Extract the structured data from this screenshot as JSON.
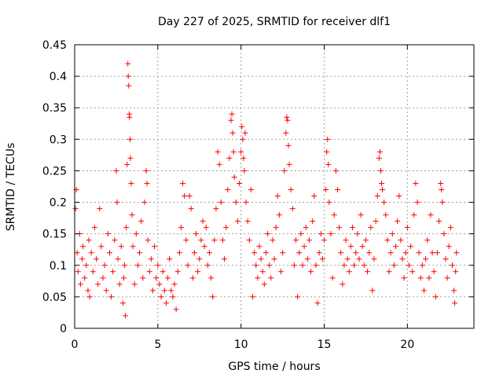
{
  "chart_data": {
    "type": "scatter",
    "title": "Day 227 of 2025, SRMTID for receiver dlf1",
    "xlabel": "GPS time / hours",
    "ylabel": "SRMTID / TECUs",
    "xlim": [
      0,
      24
    ],
    "ylim": [
      0,
      0.45
    ],
    "xticks": [
      0,
      5,
      10,
      15,
      20
    ],
    "xtick_labels": [
      "0",
      "5",
      "10",
      "15",
      "20"
    ],
    "yticks": [
      0,
      0.05,
      0.1,
      0.15,
      0.2,
      0.25,
      0.3,
      0.35,
      0.4,
      0.45
    ],
    "ytick_labels": [
      "0",
      "0.05",
      "0.1",
      "0.15",
      "0.2",
      "0.25",
      "0.3",
      "0.35",
      "0.4",
      "0.45"
    ],
    "grid": true,
    "marker": "+",
    "color": "#ff0000",
    "series": [
      {
        "name": "SRMTID",
        "points": [
          [
            0.05,
            0.19
          ],
          [
            0.1,
            0.22
          ],
          [
            0.15,
            0.12
          ],
          [
            0.2,
            0.09
          ],
          [
            0.3,
            0.15
          ],
          [
            0.35,
            0.07
          ],
          [
            0.45,
            0.11
          ],
          [
            0.5,
            0.13
          ],
          [
            0.6,
            0.08
          ],
          [
            0.7,
            0.1
          ],
          [
            0.8,
            0.06
          ],
          [
            0.85,
            0.14
          ],
          [
            0.9,
            0.05
          ],
          [
            1.0,
            0.12
          ],
          [
            1.1,
            0.09
          ],
          [
            1.2,
            0.16
          ],
          [
            1.3,
            0.11
          ],
          [
            1.4,
            0.07
          ],
          [
            1.5,
            0.19
          ],
          [
            1.6,
            0.13
          ],
          [
            1.7,
            0.08
          ],
          [
            1.8,
            0.1
          ],
          [
            1.9,
            0.06
          ],
          [
            2.0,
            0.15
          ],
          [
            2.1,
            0.12
          ],
          [
            2.2,
            0.05
          ],
          [
            2.3,
            0.09
          ],
          [
            2.4,
            0.14
          ],
          [
            2.5,
            0.25
          ],
          [
            2.55,
            0.2
          ],
          [
            2.6,
            0.11
          ],
          [
            2.7,
            0.07
          ],
          [
            2.8,
            0.13
          ],
          [
            2.9,
            0.04
          ],
          [
            2.95,
            0.08
          ],
          [
            3.0,
            0.1
          ],
          [
            3.05,
            0.02
          ],
          [
            3.1,
            0.16
          ],
          [
            3.15,
            0.26
          ],
          [
            3.2,
            0.42
          ],
          [
            3.22,
            0.4
          ],
          [
            3.25,
            0.385
          ],
          [
            3.28,
            0.34
          ],
          [
            3.3,
            0.335
          ],
          [
            3.33,
            0.3
          ],
          [
            3.35,
            0.27
          ],
          [
            3.4,
            0.23
          ],
          [
            3.45,
            0.18
          ],
          [
            3.5,
            0.13
          ],
          [
            3.6,
            0.07
          ],
          [
            3.7,
            0.15
          ],
          [
            3.8,
            0.1
          ],
          [
            3.9,
            0.12
          ],
          [
            4.0,
            0.17
          ],
          [
            4.1,
            0.08
          ],
          [
            4.2,
            0.2
          ],
          [
            4.3,
            0.25
          ],
          [
            4.35,
            0.23
          ],
          [
            4.4,
            0.14
          ],
          [
            4.5,
            0.09
          ],
          [
            4.6,
            0.11
          ],
          [
            4.7,
            0.06
          ],
          [
            4.8,
            0.13
          ],
          [
            4.9,
            0.08
          ],
          [
            5.0,
            0.1
          ],
          [
            5.1,
            0.07
          ],
          [
            5.2,
            0.05
          ],
          [
            5.3,
            0.09
          ],
          [
            5.4,
            0.06
          ],
          [
            5.5,
            0.04
          ],
          [
            5.6,
            0.08
          ],
          [
            5.7,
            0.11
          ],
          [
            5.8,
            0.06
          ],
          [
            5.9,
            0.05
          ],
          [
            6.0,
            0.07
          ],
          [
            6.1,
            0.03
          ],
          [
            6.2,
            0.09
          ],
          [
            6.3,
            0.12
          ],
          [
            6.4,
            0.16
          ],
          [
            6.5,
            0.23
          ],
          [
            6.6,
            0.21
          ],
          [
            6.7,
            0.14
          ],
          [
            6.8,
            0.1
          ],
          [
            6.9,
            0.21
          ],
          [
            7.0,
            0.19
          ],
          [
            7.1,
            0.08
          ],
          [
            7.2,
            0.12
          ],
          [
            7.3,
            0.15
          ],
          [
            7.4,
            0.09
          ],
          [
            7.5,
            0.11
          ],
          [
            7.6,
            0.14
          ],
          [
            7.7,
            0.17
          ],
          [
            7.8,
            0.13
          ],
          [
            7.9,
            0.16
          ],
          [
            8.0,
            0.1
          ],
          [
            8.1,
            0.12
          ],
          [
            8.2,
            0.08
          ],
          [
            8.3,
            0.05
          ],
          [
            8.4,
            0.14
          ],
          [
            8.5,
            0.19
          ],
          [
            8.6,
            0.28
          ],
          [
            8.7,
            0.26
          ],
          [
            8.8,
            0.2
          ],
          [
            8.9,
            0.14
          ],
          [
            9.0,
            0.11
          ],
          [
            9.1,
            0.16
          ],
          [
            9.2,
            0.22
          ],
          [
            9.3,
            0.27
          ],
          [
            9.4,
            0.33
          ],
          [
            9.45,
            0.34
          ],
          [
            9.5,
            0.31
          ],
          [
            9.55,
            0.28
          ],
          [
            9.6,
            0.24
          ],
          [
            9.7,
            0.2
          ],
          [
            9.8,
            0.17
          ],
          [
            9.9,
            0.23
          ],
          [
            10.0,
            0.28
          ],
          [
            10.05,
            0.32
          ],
          [
            10.1,
            0.3
          ],
          [
            10.15,
            0.27
          ],
          [
            10.2,
            0.25
          ],
          [
            10.25,
            0.31
          ],
          [
            10.3,
            0.2
          ],
          [
            10.4,
            0.17
          ],
          [
            10.5,
            0.14
          ],
          [
            10.6,
            0.22
          ],
          [
            10.7,
            0.05
          ],
          [
            10.8,
            0.12
          ],
          [
            10.9,
            0.1
          ],
          [
            11.0,
            0.08
          ],
          [
            11.1,
            0.13
          ],
          [
            11.2,
            0.11
          ],
          [
            11.3,
            0.09
          ],
          [
            11.4,
            0.07
          ],
          [
            11.5,
            0.12
          ],
          [
            11.6,
            0.15
          ],
          [
            11.7,
            0.1
          ],
          [
            11.8,
            0.08
          ],
          [
            11.9,
            0.14
          ],
          [
            12.0,
            0.11
          ],
          [
            12.1,
            0.16
          ],
          [
            12.2,
            0.21
          ],
          [
            12.3,
            0.18
          ],
          [
            12.4,
            0.09
          ],
          [
            12.5,
            0.12
          ],
          [
            12.6,
            0.25
          ],
          [
            12.7,
            0.31
          ],
          [
            12.75,
            0.335
          ],
          [
            12.8,
            0.33
          ],
          [
            12.85,
            0.29
          ],
          [
            12.9,
            0.26
          ],
          [
            13.0,
            0.22
          ],
          [
            13.1,
            0.19
          ],
          [
            13.2,
            0.1
          ],
          [
            13.3,
            0.14
          ],
          [
            13.4,
            0.05
          ],
          [
            13.5,
            0.12
          ],
          [
            13.6,
            0.15
          ],
          [
            13.7,
            0.1
          ],
          [
            13.8,
            0.13
          ],
          [
            13.9,
            0.16
          ],
          [
            14.0,
            0.11
          ],
          [
            14.1,
            0.14
          ],
          [
            14.2,
            0.09
          ],
          [
            14.3,
            0.17
          ],
          [
            14.4,
            0.21
          ],
          [
            14.5,
            0.1
          ],
          [
            14.6,
            0.04
          ],
          [
            14.7,
            0.12
          ],
          [
            14.8,
            0.15
          ],
          [
            14.9,
            0.11
          ],
          [
            15.0,
            0.14
          ],
          [
            15.1,
            0.22
          ],
          [
            15.15,
            0.28
          ],
          [
            15.2,
            0.3
          ],
          [
            15.25,
            0.26
          ],
          [
            15.3,
            0.2
          ],
          [
            15.4,
            0.15
          ],
          [
            15.5,
            0.08
          ],
          [
            15.6,
            0.18
          ],
          [
            15.7,
            0.25
          ],
          [
            15.8,
            0.22
          ],
          [
            15.9,
            0.16
          ],
          [
            16.0,
            0.12
          ],
          [
            16.1,
            0.07
          ],
          [
            16.2,
            0.1
          ],
          [
            16.3,
            0.14
          ],
          [
            16.4,
            0.11
          ],
          [
            16.5,
            0.09
          ],
          [
            16.6,
            0.13
          ],
          [
            16.7,
            0.16
          ],
          [
            16.8,
            0.1
          ],
          [
            16.9,
            0.12
          ],
          [
            17.0,
            0.15
          ],
          [
            17.1,
            0.11
          ],
          [
            17.2,
            0.18
          ],
          [
            17.3,
            0.13
          ],
          [
            17.4,
            0.1
          ],
          [
            17.5,
            0.14
          ],
          [
            17.6,
            0.09
          ],
          [
            17.7,
            0.12
          ],
          [
            17.8,
            0.16
          ],
          [
            17.9,
            0.06
          ],
          [
            18.0,
            0.11
          ],
          [
            18.1,
            0.17
          ],
          [
            18.2,
            0.21
          ],
          [
            18.3,
            0.27
          ],
          [
            18.35,
            0.28
          ],
          [
            18.4,
            0.25
          ],
          [
            18.45,
            0.23
          ],
          [
            18.5,
            0.22
          ],
          [
            18.6,
            0.2
          ],
          [
            18.7,
            0.18
          ],
          [
            18.8,
            0.14
          ],
          [
            18.9,
            0.09
          ],
          [
            19.0,
            0.12
          ],
          [
            19.1,
            0.15
          ],
          [
            19.2,
            0.1
          ],
          [
            19.3,
            0.13
          ],
          [
            19.4,
            0.17
          ],
          [
            19.5,
            0.21
          ],
          [
            19.6,
            0.14
          ],
          [
            19.7,
            0.11
          ],
          [
            19.8,
            0.08
          ],
          [
            19.9,
            0.12
          ],
          [
            20.0,
            0.16
          ],
          [
            20.1,
            0.1
          ],
          [
            20.2,
            0.13
          ],
          [
            20.3,
            0.09
          ],
          [
            20.4,
            0.18
          ],
          [
            20.5,
            0.23
          ],
          [
            20.6,
            0.2
          ],
          [
            20.7,
            0.12
          ],
          [
            20.8,
            0.08
          ],
          [
            20.9,
            0.1
          ],
          [
            21.0,
            0.06
          ],
          [
            21.1,
            0.11
          ],
          [
            21.2,
            0.14
          ],
          [
            21.3,
            0.08
          ],
          [
            21.4,
            0.18
          ],
          [
            21.5,
            0.12
          ],
          [
            21.6,
            0.09
          ],
          [
            21.7,
            0.05
          ],
          [
            21.8,
            0.12
          ],
          [
            21.9,
            0.17
          ],
          [
            22.0,
            0.23
          ],
          [
            22.05,
            0.22
          ],
          [
            22.1,
            0.2
          ],
          [
            22.2,
            0.15
          ],
          [
            22.3,
            0.11
          ],
          [
            22.4,
            0.08
          ],
          [
            22.5,
            0.13
          ],
          [
            22.6,
            0.16
          ],
          [
            22.7,
            0.1
          ],
          [
            22.8,
            0.06
          ],
          [
            22.85,
            0.04
          ],
          [
            22.9,
            0.09
          ],
          [
            22.95,
            0.12
          ]
        ]
      }
    ]
  }
}
